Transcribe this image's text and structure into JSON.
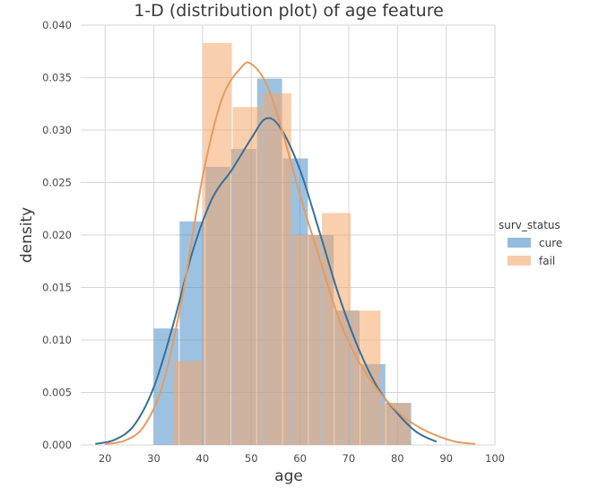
{
  "chart_data": {
    "type": "histogram",
    "title": "1-D (distribution plot) of age feature",
    "xlabel": "age",
    "ylabel": "density",
    "xlim": [
      15,
      100
    ],
    "ylim": [
      0,
      0.04
    ],
    "xticks": [
      "20",
      "30",
      "40",
      "50",
      "60",
      "70",
      "80",
      "90",
      "100"
    ],
    "yticks": [
      "0.000",
      "0.005",
      "0.010",
      "0.015",
      "0.020",
      "0.025",
      "0.030",
      "0.035",
      "0.040"
    ],
    "grid": true,
    "legend": {
      "title": "surv_status",
      "placement": "right"
    },
    "series": [
      {
        "name": "cure",
        "color": "#4c8fc9",
        "line_color": "#3a6f96",
        "bins": [
          {
            "x0": 30,
            "x1": 35.3,
            "density": 0.0111
          },
          {
            "x0": 35.3,
            "x1": 40.6,
            "density": 0.0213
          },
          {
            "x0": 40.6,
            "x1": 45.9,
            "density": 0.0265
          },
          {
            "x0": 45.9,
            "x1": 51.2,
            "density": 0.0282
          },
          {
            "x0": 51.2,
            "x1": 56.5,
            "density": 0.0349
          },
          {
            "x0": 56.5,
            "x1": 61.8,
            "density": 0.0273
          },
          {
            "x0": 61.8,
            "x1": 67.1,
            "density": 0.02
          },
          {
            "x0": 67.1,
            "x1": 72.4,
            "density": 0.0128
          },
          {
            "x0": 72.4,
            "x1": 77.7,
            "density": 0.0077
          },
          {
            "x0": 77.7,
            "x1": 83,
            "density": 0.004
          }
        ],
        "kde": [
          [
            18,
            0.0001
          ],
          [
            22,
            0.0005
          ],
          [
            26,
            0.0019
          ],
          [
            30,
            0.0055
          ],
          [
            34,
            0.0115
          ],
          [
            38,
            0.0185
          ],
          [
            42,
            0.0235
          ],
          [
            46,
            0.0262
          ],
          [
            50,
            0.0292
          ],
          [
            53,
            0.0311
          ],
          [
            56,
            0.0302
          ],
          [
            60,
            0.0262
          ],
          [
            64,
            0.0203
          ],
          [
            68,
            0.0142
          ],
          [
            72,
            0.0092
          ],
          [
            76,
            0.0054
          ],
          [
            80,
            0.003
          ],
          [
            84,
            0.0012
          ],
          [
            88,
            0.0003
          ]
        ]
      },
      {
        "name": "fail",
        "color": "#f5a86b",
        "line_color": "#e89b5e",
        "bins": [
          {
            "x0": 34,
            "x1": 40.1,
            "density": 0.008
          },
          {
            "x0": 40.1,
            "x1": 46.2,
            "density": 0.0383
          },
          {
            "x0": 46.2,
            "x1": 52.3,
            "density": 0.0322
          },
          {
            "x0": 52.3,
            "x1": 58.4,
            "density": 0.0335
          },
          {
            "x0": 58.4,
            "x1": 64.5,
            "density": 0.02
          },
          {
            "x0": 64.5,
            "x1": 70.6,
            "density": 0.0221
          },
          {
            "x0": 70.6,
            "x1": 76.7,
            "density": 0.0128
          },
          {
            "x0": 76.7,
            "x1": 82.8,
            "density": 0.004
          }
        ],
        "kde": [
          [
            20,
            0.0001
          ],
          [
            24,
            0.0004
          ],
          [
            28,
            0.0018
          ],
          [
            32,
            0.006
          ],
          [
            36,
            0.0145
          ],
          [
            40,
            0.0255
          ],
          [
            44,
            0.033
          ],
          [
            48,
            0.036
          ],
          [
            50,
            0.0363
          ],
          [
            53,
            0.0345
          ],
          [
            56,
            0.0305
          ],
          [
            60,
            0.0238
          ],
          [
            64,
            0.0178
          ],
          [
            68,
            0.012
          ],
          [
            72,
            0.008
          ],
          [
            76,
            0.0052
          ],
          [
            80,
            0.0032
          ],
          [
            84,
            0.0018
          ],
          [
            88,
            0.0009
          ],
          [
            92,
            0.0003
          ],
          [
            96,
            0.0001
          ]
        ]
      }
    ]
  }
}
